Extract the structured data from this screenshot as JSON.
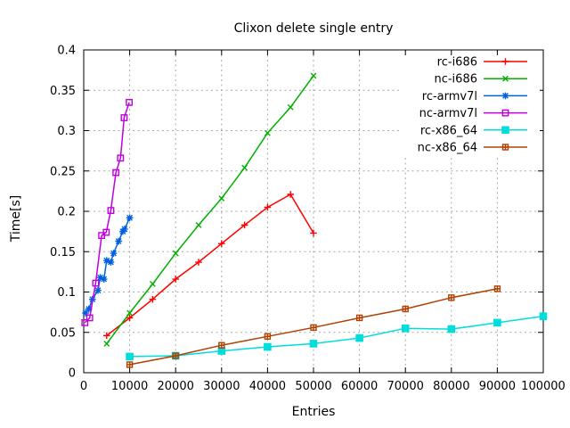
{
  "chart_data": {
    "type": "line",
    "title": "Clixon delete single entry",
    "xlabel": "Entries",
    "ylabel": "Time[s]",
    "xlim": [
      0,
      100000
    ],
    "ylim": [
      0,
      0.4
    ],
    "x_ticks": [
      0,
      10000,
      20000,
      30000,
      40000,
      50000,
      60000,
      70000,
      80000,
      90000,
      100000
    ],
    "x_tick_labels": [
      "0",
      "10000",
      "20000",
      "30000",
      "40000",
      "50000",
      "60000",
      "70000",
      "80000",
      "90000",
      "100000"
    ],
    "y_ticks": [
      0,
      0.05,
      0.1,
      0.15,
      0.2,
      0.25,
      0.3,
      0.35,
      0.4
    ],
    "y_tick_labels": [
      "0",
      "0.05",
      "0.1",
      "0.15",
      "0.2",
      "0.25",
      "0.3",
      "0.35",
      "0.4"
    ],
    "grid": true,
    "grid_color": "#a8a8a8",
    "legend_position": "top-right",
    "series": [
      {
        "name": "rc-i686",
        "color": "#ff0000",
        "marker": "plus",
        "points": [
          [
            5000,
            0.046
          ],
          [
            10000,
            0.068
          ],
          [
            15000,
            0.091
          ],
          [
            20000,
            0.116
          ],
          [
            25000,
            0.137
          ],
          [
            30000,
            0.16
          ],
          [
            35000,
            0.183
          ],
          [
            40000,
            0.205
          ],
          [
            45000,
            0.221
          ],
          [
            50000,
            0.173
          ]
        ]
      },
      {
        "name": "nc-i686",
        "color": "#00b000",
        "marker": "cross",
        "points": [
          [
            5000,
            0.036
          ],
          [
            10000,
            0.074
          ],
          [
            15000,
            0.11
          ],
          [
            20000,
            0.148
          ],
          [
            25000,
            0.183
          ],
          [
            30000,
            0.216
          ],
          [
            35000,
            0.254
          ],
          [
            40000,
            0.297
          ],
          [
            45000,
            0.329
          ],
          [
            50000,
            0.368
          ]
        ]
      },
      {
        "name": "rc-armv7l",
        "color": "#0060e0",
        "marker": "asterisk",
        "points": [
          [
            400,
            0.074
          ],
          [
            1100,
            0.079
          ],
          [
            1900,
            0.091
          ],
          [
            3100,
            0.102
          ],
          [
            3600,
            0.118
          ],
          [
            4400,
            0.116
          ],
          [
            5000,
            0.139
          ],
          [
            5900,
            0.137
          ],
          [
            6500,
            0.148
          ],
          [
            7600,
            0.163
          ],
          [
            8500,
            0.175
          ],
          [
            8900,
            0.178
          ],
          [
            10000,
            0.192
          ]
        ]
      },
      {
        "name": "nc-armv7l",
        "color": "#c000e0",
        "marker": "open-square",
        "points": [
          [
            250,
            0.062
          ],
          [
            1300,
            0.068
          ],
          [
            2600,
            0.111
          ],
          [
            3900,
            0.17
          ],
          [
            4900,
            0.174
          ],
          [
            5900,
            0.201
          ],
          [
            7000,
            0.248
          ],
          [
            8000,
            0.266
          ],
          [
            8800,
            0.316
          ],
          [
            9900,
            0.335
          ]
        ]
      },
      {
        "name": "rc-x86_64",
        "color": "#00dddd",
        "marker": "filled-square",
        "points": [
          [
            10000,
            0.02
          ],
          [
            20000,
            0.021
          ],
          [
            30000,
            0.027
          ],
          [
            40000,
            0.032
          ],
          [
            50000,
            0.036
          ],
          [
            60000,
            0.043
          ],
          [
            70000,
            0.055
          ],
          [
            80000,
            0.054
          ],
          [
            90000,
            0.062
          ],
          [
            100000,
            0.07
          ]
        ]
      },
      {
        "name": "nc-x86_64",
        "color": "#b04000",
        "marker": "square-plus",
        "points": [
          [
            10000,
            0.01
          ],
          [
            20000,
            0.021
          ],
          [
            30000,
            0.034
          ],
          [
            40000,
            0.045
          ],
          [
            50000,
            0.056
          ],
          [
            60000,
            0.068
          ],
          [
            70000,
            0.079
          ],
          [
            80000,
            0.093
          ],
          [
            90000,
            0.104
          ]
        ]
      }
    ]
  }
}
